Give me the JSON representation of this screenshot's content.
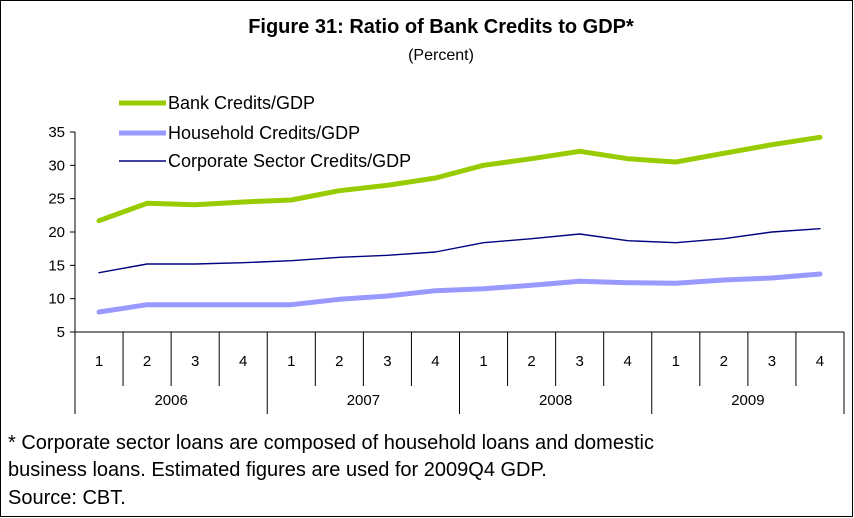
{
  "chart_data": {
    "type": "line",
    "title": "Figure 31: Ratio of Bank Credits to GDP*",
    "subtitle": "(Percent)",
    "quarters": [
      "1",
      "2",
      "3",
      "4",
      "1",
      "2",
      "3",
      "4",
      "1",
      "2",
      "3",
      "4",
      "1",
      "2",
      "3",
      "4"
    ],
    "years": [
      "2006",
      "2007",
      "2008",
      "2009"
    ],
    "ylim": [
      5,
      35
    ],
    "yticks": [
      5,
      10,
      15,
      20,
      25,
      30,
      35
    ],
    "legend_position": "top-left",
    "series": [
      {
        "name": "Bank Credits/GDP",
        "color": "#99cc00",
        "width": "thick",
        "values": [
          21.7,
          24.3,
          24.1,
          24.5,
          24.8,
          26.2,
          27.0,
          28.1,
          30.0,
          31.0,
          32.1,
          31.0,
          30.5,
          31.8,
          33.1,
          34.2
        ]
      },
      {
        "name": "Household Credits/GDP",
        "color": "#9999ff",
        "width": "thick",
        "values": [
          8.0,
          9.1,
          9.1,
          9.1,
          9.1,
          9.9,
          10.4,
          11.2,
          11.5,
          12.0,
          12.6,
          12.4,
          12.3,
          12.8,
          13.1,
          13.7
        ]
      },
      {
        "name": "Corporate Sector Credits/GDP",
        "color": "#000080",
        "width": "thin",
        "values": [
          13.9,
          15.2,
          15.2,
          15.4,
          15.7,
          16.2,
          16.5,
          17.0,
          18.4,
          19.0,
          19.7,
          18.7,
          18.4,
          19.0,
          20.0,
          20.5
        ]
      }
    ]
  },
  "notes": {
    "footnote_line1": "* Corporate sector loans are composed of household loans and domestic",
    "footnote_line2": "business loans. Estimated figures are used for 2009Q4 GDP.",
    "source": "Source: CBT."
  }
}
